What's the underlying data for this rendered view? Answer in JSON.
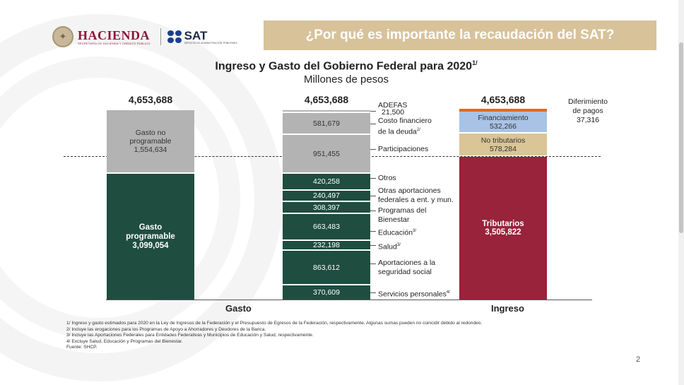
{
  "header": {
    "hacienda_name": "HACIENDA",
    "hacienda_sub": "SECRETARÍA DE HACIENDA Y CRÉDITO PÚBLICO",
    "sat_name": "SAT",
    "sat_sub": "SERVICIO DE ADMINISTRACIÓN TRIBUTARIA",
    "banner": "¿Por qué es importante la recaudación del SAT?"
  },
  "colors": {
    "banner": "#d8c29a",
    "gray": "#b3b3b3",
    "green": "#1f4d3f",
    "red": "#98233b",
    "blue": "#a8c3e6",
    "tan": "#d9c596",
    "orange": "#e06a1f"
  },
  "chart_data": {
    "type": "bar",
    "title": "Ingreso y Gasto del Gobierno Federal para 2020",
    "title_note": "1/",
    "subtitle": "Millones de pesos",
    "categories": [
      "Gasto",
      "Ingreso"
    ],
    "totals": [
      "4,653,688",
      "4,653,688",
      "4,653,688"
    ],
    "gasto": {
      "no_programable": {
        "label": "Gasto no programable",
        "value": 1554634,
        "value_text": "1,554,634"
      },
      "programable": {
        "label": "Gasto programable",
        "value": 3099054,
        "value_text": "3,099,054"
      }
    },
    "desglose": [
      {
        "label": "ADEFAS",
        "value": 21500,
        "value_text": "21,500"
      },
      {
        "label": "Costo financiero de la deuda",
        "note": "2/",
        "value": 581679,
        "value_text": "581,679"
      },
      {
        "label": "Participaciones",
        "value": 951455,
        "value_text": "951,455"
      },
      {
        "label": "Otros",
        "value": 420258,
        "value_text": "420,258"
      },
      {
        "label": "Otras aportaciones federales a ent. y mun.",
        "value": 240497,
        "value_text": "240,497"
      },
      {
        "label": "Programas del Bienestar",
        "value": 308397,
        "value_text": "308,397"
      },
      {
        "label": "Educación",
        "note": "3/",
        "value": 663483,
        "value_text": "663,483"
      },
      {
        "label": "Salud",
        "note": "3/",
        "value": 232198,
        "value_text": "232,198"
      },
      {
        "label": "Aportaciones a la seguridad social",
        "value": 863612,
        "value_text": "863,612"
      },
      {
        "label": "Servicios personales",
        "note": "4/",
        "value": 370609,
        "value_text": "370,609"
      }
    ],
    "ingreso": {
      "diferimiento": {
        "label": "Diferimiento de pagos",
        "value": 37316,
        "value_text": "37,316"
      },
      "financiamiento": {
        "label": "Financiamiento",
        "value": 532266,
        "value_text": "532,266"
      },
      "no_tributarios": {
        "label": "No tributarios",
        "value": 578284,
        "value_text": "578,284"
      },
      "tributarios": {
        "label": "Tributarios",
        "value": 3505822,
        "value_text": "3,505,822"
      }
    }
  },
  "labels": {
    "adefas": "ADEFAS",
    "costo1": "Costo financiero",
    "costo2": "de la deuda",
    "costo_note": "2/",
    "participaciones": "Participaciones",
    "otros": "Otros",
    "otras1": "Otras aportaciones",
    "otras2": "federales a ent. y mun.",
    "prog1": "Programas del",
    "prog2": "Bienestar",
    "educacion": "Educación",
    "educacion_note": "3/",
    "salud": "Salud",
    "salud_note": "3/",
    "seg1": "Aportaciones a la",
    "seg2": "seguridad social",
    "serv": "Servicios personales",
    "serv_note": "4/",
    "dif1": "Diferimiento",
    "dif2": "de pagos",
    "gnp1": "Gasto no",
    "gnp2": "programable",
    "gp1": "Gasto",
    "gp2": "programable",
    "trib": "Tributarios"
  },
  "footnotes": [
    "1/ Ingreso y gasto estimados para 2020 en la Ley de Ingresos de la Federación y el Presupuesto de Egresos de la Federación, respectivamente. Algunas sumas pueden no coincidir debido al redondeo.",
    "2/ Incluye las erogaciones para los Programas de Apoyo a Ahorradores y Deudores de la Banca.",
    "3/ Incluye las Aportaciones Federales para Entidades Federativas y Municipios de Educación y Salud, respectivamente.",
    "4/ Excluye Salud, Educación y Programas del Bienestar.",
    "Fuente: SHCP."
  ],
  "page_number": "2"
}
